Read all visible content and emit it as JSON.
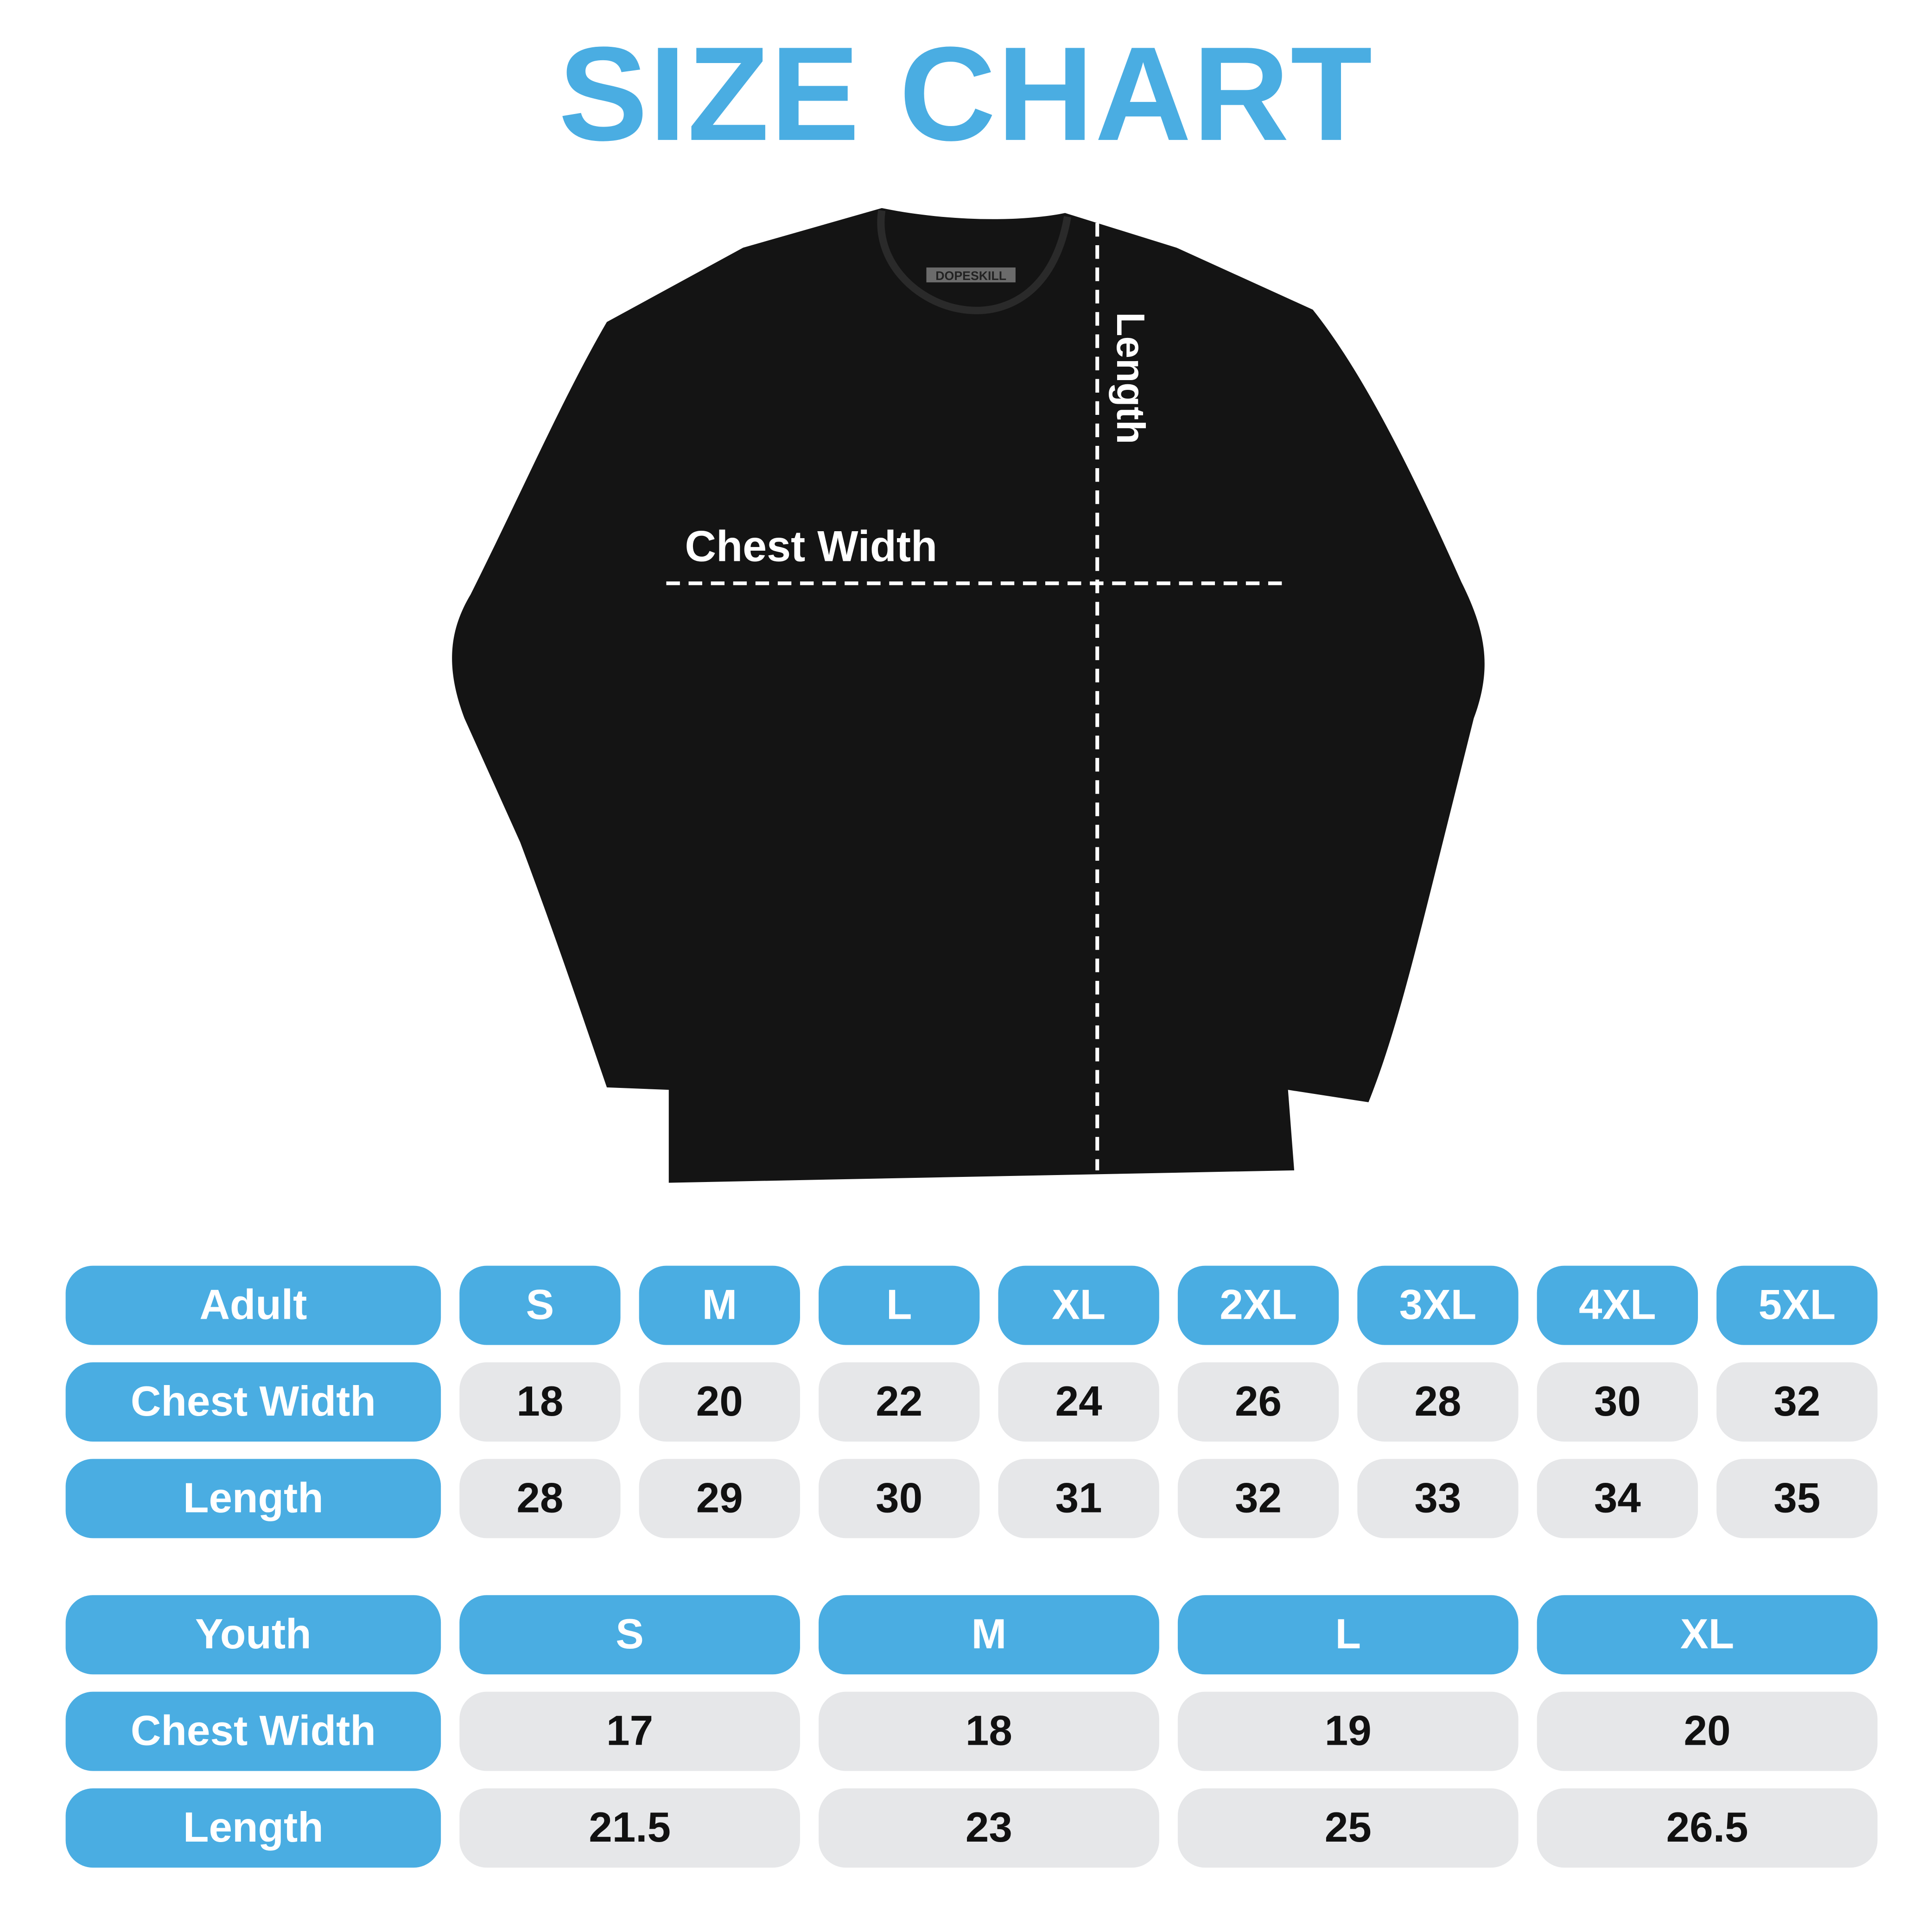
{
  "title": "SIZE CHART",
  "brand_tag": "DOPESKILL",
  "shirt_labels": {
    "chest": "Chest Width",
    "length": "Length"
  },
  "colors": {
    "accent": "#4aade2",
    "cell": "#e6e7e9",
    "shirt": "#111111"
  },
  "adult": {
    "header": "Adult",
    "sizes": [
      "S",
      "M",
      "L",
      "XL",
      "2XL",
      "3XL",
      "4XL",
      "5XL"
    ],
    "rows": [
      {
        "label": "Chest Width",
        "values": [
          "18",
          "20",
          "22",
          "24",
          "26",
          "28",
          "30",
          "32"
        ]
      },
      {
        "label": "Length",
        "values": [
          "28",
          "29",
          "30",
          "31",
          "32",
          "33",
          "34",
          "35"
        ]
      }
    ]
  },
  "youth": {
    "header": "Youth",
    "sizes": [
      "S",
      "M",
      "L",
      "XL"
    ],
    "rows": [
      {
        "label": "Chest Width",
        "values": [
          "17",
          "18",
          "19",
          "20"
        ]
      },
      {
        "label": "Length",
        "values": [
          "21.5",
          "23",
          "25",
          "26.5"
        ]
      }
    ]
  }
}
